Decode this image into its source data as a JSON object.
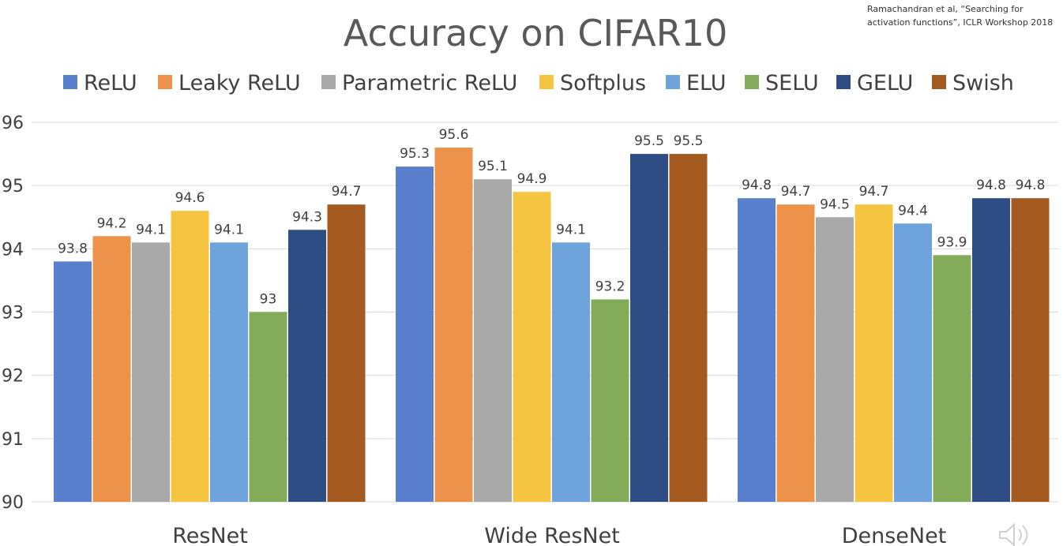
{
  "chart_data": {
    "type": "bar",
    "title": "Accuracy on CIFAR10",
    "citation": [
      "Ramachandran et al, “Searching for",
      "activation functions”, ICLR Workshop 2018"
    ],
    "categories": [
      "ResNet",
      "Wide ResNet",
      "DenseNet"
    ],
    "series": [
      {
        "name": "ReLU",
        "color": "#5a7fcd",
        "values": [
          93.8,
          95.3,
          94.8
        ]
      },
      {
        "name": "Leaky ReLU",
        "color": "#ed924a",
        "values": [
          94.2,
          95.6,
          94.7
        ]
      },
      {
        "name": "Parametric ReLU",
        "color": "#a9a9a9",
        "values": [
          94.1,
          95.1,
          94.5
        ]
      },
      {
        "name": "Softplus",
        "color": "#f5c542",
        "values": [
          94.6,
          94.9,
          94.7
        ]
      },
      {
        "name": "ELU",
        "color": "#6fa3dc",
        "values": [
          94.1,
          94.1,
          94.4
        ]
      },
      {
        "name": "SELU",
        "color": "#84ab5a",
        "values": [
          93,
          93.2,
          93.9
        ]
      },
      {
        "name": "GELU",
        "color": "#2d4d84",
        "values": [
          94.3,
          95.5,
          94.8
        ]
      },
      {
        "name": "Swish",
        "color": "#a55a1f",
        "values": [
          94.7,
          95.5,
          94.8
        ]
      }
    ],
    "ylim": [
      90,
      96
    ],
    "yticks": [
      90,
      91,
      92,
      93,
      94,
      95,
      96
    ],
    "grid": true,
    "legend_position": "top",
    "xlabel": "",
    "ylabel": ""
  },
  "icons": {
    "speaker": "speaker-icon"
  }
}
